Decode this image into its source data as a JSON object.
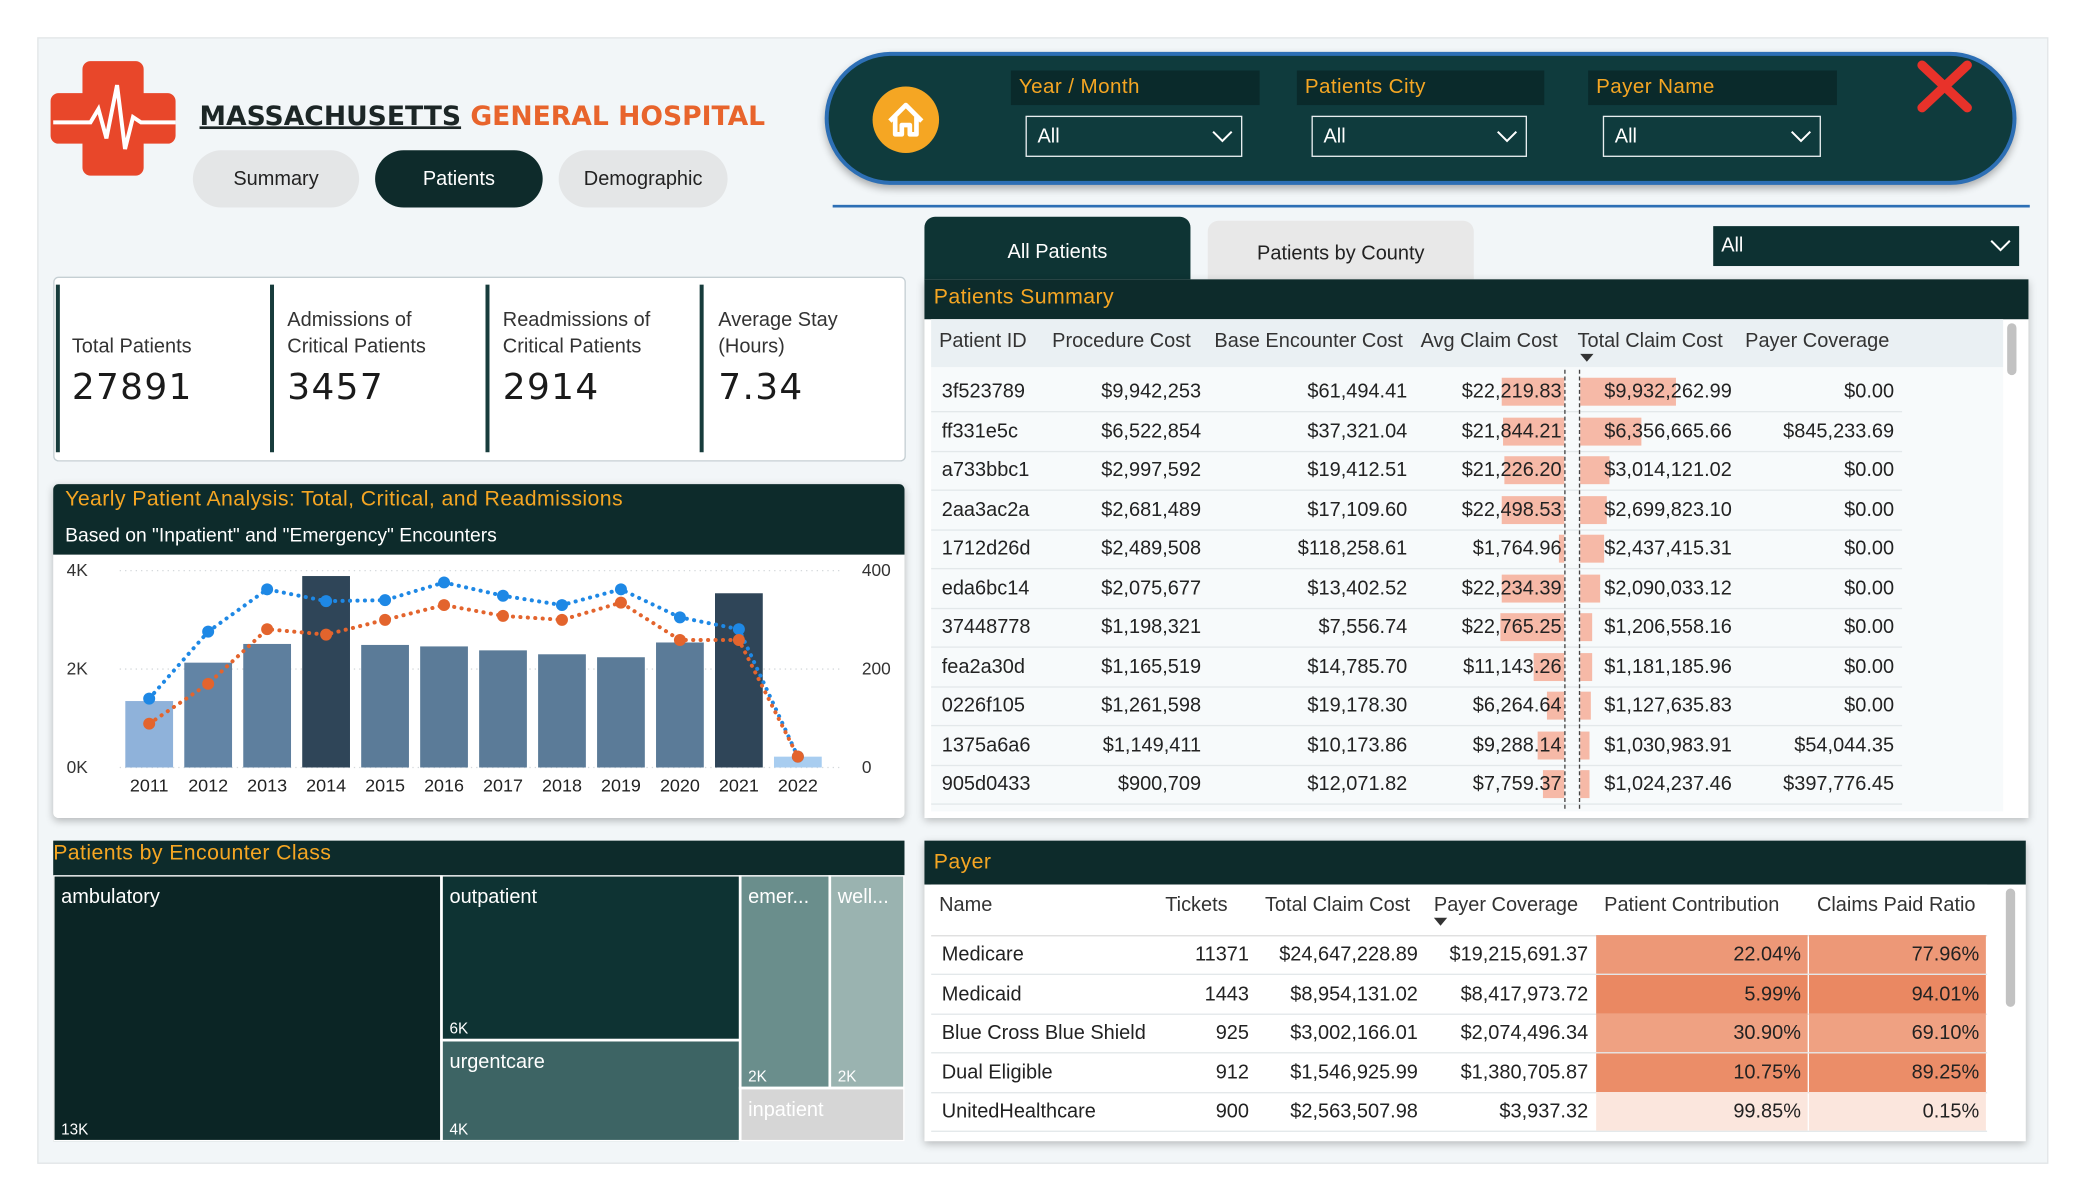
{
  "header": {
    "title": "MASSACHUSETTS",
    "title_accent": "GENERAL HOSPITAL",
    "tabs": [
      "Summary",
      "Patients",
      "Demographic"
    ]
  },
  "filters": [
    {
      "label": "Year / Month",
      "value": "All"
    },
    {
      "label": "Patients City",
      "value": "All"
    },
    {
      "label": "Payer Name",
      "value": "All"
    }
  ],
  "kpis": [
    {
      "label": "Total Patients",
      "value": 27891
    },
    {
      "label": "Admissions of Critical Patients",
      "value": 3457
    },
    {
      "label": "Readmissions of Critical Patients",
      "value": 2914
    },
    {
      "label": "Average Stay (Hours)",
      "value": 7.34
    }
  ],
  "chart_data": [
    {
      "type": "bar",
      "title": "Yearly Patient Analysis: Total, Critical, and Readmissions",
      "subtitle": "Based on \"Inpatient\" and \"Emergency\" Encounters",
      "categories": [
        "2011",
        "2012",
        "2013",
        "2014",
        "2015",
        "2016",
        "2017",
        "2018",
        "2019",
        "2020",
        "2021",
        "2022"
      ],
      "series": [
        {
          "values": [
            1350,
            2130,
            2510,
            3890,
            2490,
            2460,
            2380,
            2300,
            2240,
            2540,
            3540,
            220
          ],
          "colors": [
            "#8fb2da",
            "#6284a5",
            "#5e7f9e",
            "#2f4558",
            "#5b7b98",
            "#5b7b98",
            "#5b7b98",
            "#5b7b98",
            "#5b7b98",
            "#5b7b98",
            "#2f4558",
            "#a8cdf0"
          ]
        },
        {
          "type": "line",
          "axis": "y2",
          "color": "#1e88e5",
          "values": [
            140,
            276,
            362,
            338,
            340,
            376,
            349,
            330,
            362,
            305,
            281,
            22
          ]
        },
        {
          "type": "line",
          "axis": "y2",
          "color": "#e3642d",
          "values": [
            89,
            170,
            281,
            270,
            300,
            330,
            308,
            300,
            335,
            259,
            259,
            22
          ]
        }
      ],
      "ylim": [
        0,
        4000
      ],
      "yticks": [
        {
          "value": 0,
          "label": "0K"
        },
        {
          "value": 2000,
          "label": "2K"
        },
        {
          "value": 4000,
          "label": "4K"
        }
      ],
      "y2lim": [
        0,
        400
      ],
      "y2ticks": [
        0,
        200,
        400
      ],
      "grid": true
    },
    {
      "type": "treemap",
      "title": "Patients by Encounter Class",
      "categories": [
        "ambulatory",
        "outpatient",
        "urgentcare",
        "emer...",
        "well...",
        "inpatient"
      ],
      "values": [
        13000,
        6200,
        3800,
        2400,
        2000,
        1100
      ],
      "value_labels": [
        "13K",
        "6K",
        "4K",
        "2K",
        "2K",
        null
      ],
      "colors": [
        "#0b2525",
        "#0e3333",
        "#3d6464",
        "#6a8e8c",
        "#9ab3b0",
        "#d6d6d6"
      ]
    }
  ],
  "patients_view": {
    "tabs": [
      "All Patients",
      "Patients by County"
    ],
    "county_filter": "All"
  },
  "patients_summary": {
    "title": "Patients Summary",
    "columns": [
      "Patient ID",
      "Procedure Cost",
      "Base Encounter Cost",
      "Avg Claim Cost",
      "Total Claim Cost",
      "Payer Coverage"
    ],
    "rows": [
      [
        "3f523789",
        "$9,942,253",
        "$61,494.41",
        "$22,219.83",
        "$9,932,262.99",
        "$0.00"
      ],
      [
        "ff331e5c",
        "$6,522,854",
        "$37,321.04",
        "$21,844.21",
        "$6,356,665.66",
        "$845,233.69"
      ],
      [
        "a733bbc1",
        "$2,997,592",
        "$19,412.51",
        "$21,226.20",
        "$3,014,121.02",
        "$0.00"
      ],
      [
        "2aa3ac2a",
        "$2,681,489",
        "$17,109.60",
        "$22,498.53",
        "$2,699,823.10",
        "$0.00"
      ],
      [
        "1712d26d",
        "$2,489,508",
        "$118,258.61",
        "$1,764.96",
        "$2,437,415.31",
        "$0.00"
      ],
      [
        "eda6bc14",
        "$2,075,677",
        "$13,402.52",
        "$22,234.39",
        "$2,090,033.12",
        "$0.00"
      ],
      [
        "37448778",
        "$1,198,321",
        "$7,556.74",
        "$22,765.25",
        "$1,206,558.16",
        "$0.00"
      ],
      [
        "fea2a30d",
        "$1,165,519",
        "$14,785.70",
        "$11,143.26",
        "$1,181,185.96",
        "$0.00"
      ],
      [
        "0226f105",
        "$1,261,598",
        "$19,178.30",
        "$6,264.64",
        "$1,127,635.83",
        "$0.00"
      ],
      [
        "1375a6a6",
        "$1,149,411",
        "$10,173.86",
        "$9,288.14",
        "$1,030,983.91",
        "$54,044.35"
      ],
      [
        "905d0433",
        "$900,709",
        "$12,071.82",
        "$7,759.37",
        "$1,024,237.46",
        "$397,776.45"
      ]
    ]
  },
  "payer": {
    "title": "Payer",
    "columns": [
      "Name",
      "Tickets",
      "Total Claim Cost",
      "Payer Coverage",
      "Patient Contribution",
      "Claims Paid Ratio"
    ],
    "rows": [
      [
        "Medicare",
        "11371",
        "$24,647,228.89",
        "$19,215,691.37",
        "22.04%",
        "77.96%"
      ],
      [
        "Medicaid",
        "1443",
        "$8,954,131.02",
        "$8,417,973.72",
        "5.99%",
        "94.01%"
      ],
      [
        "Blue Cross Blue Shield",
        "925",
        "$3,002,166.01",
        "$2,074,496.34",
        "30.90%",
        "69.10%"
      ],
      [
        "Dual Eligible",
        "912",
        "$1,546,925.99",
        "$1,380,705.87",
        "10.75%",
        "89.25%"
      ],
      [
        "UnitedHealthcare",
        "900",
        "$2,563,507.98",
        "$3,937.32",
        "99.85%",
        "0.15%"
      ]
    ]
  }
}
